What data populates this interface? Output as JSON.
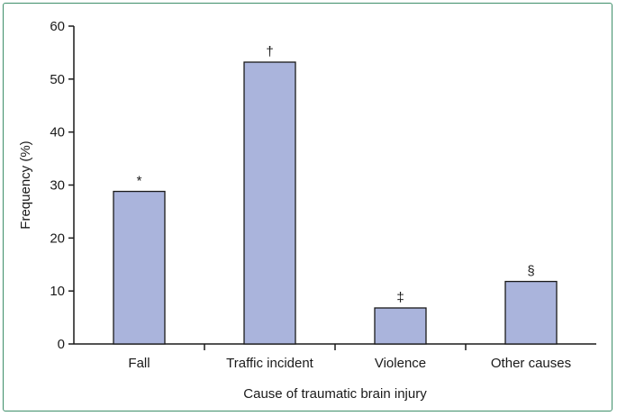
{
  "chart_data": {
    "type": "bar",
    "title": "",
    "categories": [
      "Fall",
      "Traffic incident",
      "Violence",
      "Other causes"
    ],
    "values": [
      28.8,
      53.2,
      6.8,
      11.8
    ],
    "annotations": [
      "*",
      "†",
      "‡",
      "§"
    ],
    "xlabel": "Cause of traumatic brain injury",
    "ylabel": "Frequency (%)",
    "ylim": [
      0,
      60
    ],
    "yticks": [
      0,
      10,
      20,
      30,
      40,
      50,
      60
    ],
    "grid": false,
    "legend": "none",
    "colors": {
      "bar_fill": "#aab4dc",
      "bar_stroke": "#1a1a1a",
      "axis": "#1a1a1a",
      "frame": "#3e8f6a"
    }
  }
}
